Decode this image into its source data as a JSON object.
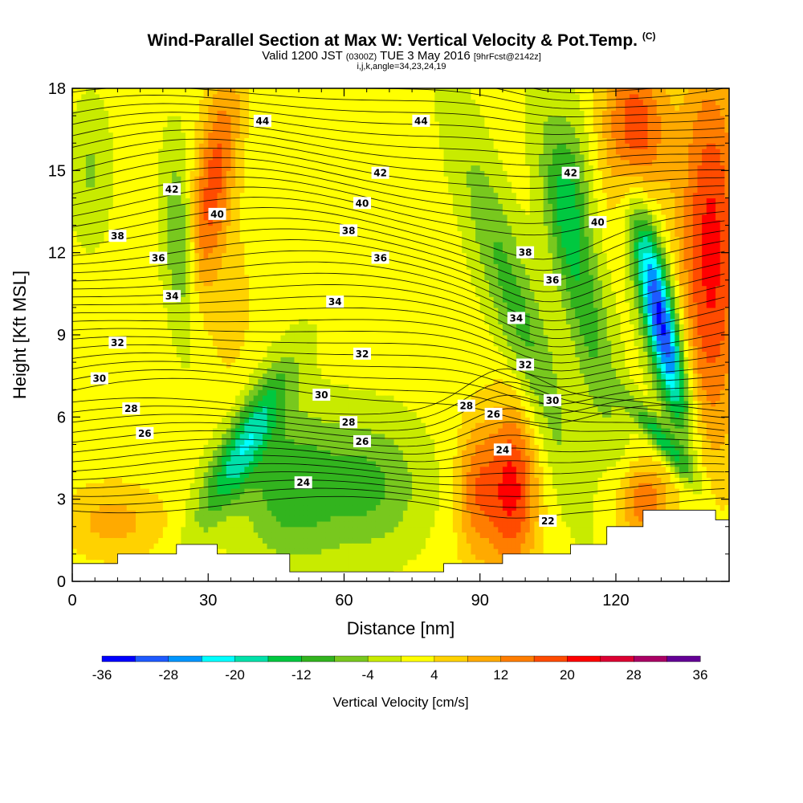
{
  "header": {
    "title": "Wind-Parallel Section at Max W: Vertical Velocity & Pot.Temp.",
    "copyright": "(C)",
    "valid_prefix": "Valid 1200 JST",
    "utc": "(0300Z)",
    "date": "TUE 3 May 2016",
    "forecast": "[9hrFcst@2142z]",
    "indices": "i,j,k,angle=34,23,24,19"
  },
  "chart_data": {
    "type": "heatmap",
    "xlabel": "Distance [nm]",
    "ylabel": "Height [Kft MSL]",
    "xlim": [
      0,
      145
    ],
    "ylim": [
      0,
      18
    ],
    "xticks": [
      0,
      30,
      60,
      90,
      120
    ],
    "yticks": [
      0,
      3,
      6,
      9,
      12,
      15,
      18
    ],
    "colorbar": {
      "label": "Vertical Velocity [cm/s]",
      "levels": [
        -36,
        -32,
        -28,
        -24,
        -20,
        -16,
        -12,
        -8,
        -4,
        0,
        4,
        8,
        12,
        16,
        20,
        24,
        28,
        32,
        36
      ],
      "tick_labels": [
        "-36",
        "-28",
        "-20",
        "-12",
        "-4",
        "4",
        "12",
        "20",
        "28",
        "36"
      ],
      "colors": [
        "#0000ff",
        "#1e5aff",
        "#0096ff",
        "#00ffff",
        "#00e1aa",
        "#00c840",
        "#32b41e",
        "#78c81e",
        "#c8eb00",
        "#ffff00",
        "#ffd200",
        "#ffaa00",
        "#ff7d00",
        "#ff4b00",
        "#ff0000",
        "#dc0032",
        "#aa0064",
        "#640096"
      ]
    },
    "terrain_height_kft": [
      {
        "x": 0,
        "h": 0.65
      },
      {
        "x": 10,
        "h": 1.0
      },
      {
        "x": 23,
        "h": 1.35
      },
      {
        "x": 32,
        "h": 1.0
      },
      {
        "x": 48,
        "h": 0.35
      },
      {
        "x": 82,
        "h": 0.65
      },
      {
        "x": 95,
        "h": 1.0
      },
      {
        "x": 110,
        "h": 1.35
      },
      {
        "x": 118,
        "h": 2.0
      },
      {
        "x": 126,
        "h": 2.6
      },
      {
        "x": 142,
        "h": 2.25
      }
    ],
    "theta_contour_labels": [
      "22",
      "24",
      "26",
      "28",
      "30",
      "32",
      "34",
      "36",
      "38",
      "40",
      "42",
      "44"
    ],
    "theta_label_positions": [
      {
        "t": "44",
        "x": 42,
        "y": 16.8
      },
      {
        "t": "44",
        "x": 77,
        "y": 16.8
      },
      {
        "t": "42",
        "x": 22,
        "y": 14.3
      },
      {
        "t": "42",
        "x": 68,
        "y": 14.9
      },
      {
        "t": "42",
        "x": 110,
        "y": 14.9
      },
      {
        "t": "40",
        "x": 32,
        "y": 13.4
      },
      {
        "t": "40",
        "x": 64,
        "y": 13.8
      },
      {
        "t": "40",
        "x": 116,
        "y": 13.1
      },
      {
        "t": "38",
        "x": 10,
        "y": 12.6
      },
      {
        "t": "38",
        "x": 61,
        "y": 12.8
      },
      {
        "t": "38",
        "x": 100,
        "y": 12.0
      },
      {
        "t": "36",
        "x": 19,
        "y": 11.8
      },
      {
        "t": "36",
        "x": 68,
        "y": 11.8
      },
      {
        "t": "36",
        "x": 106,
        "y": 11.0
      },
      {
        "t": "34",
        "x": 22,
        "y": 10.4
      },
      {
        "t": "34",
        "x": 58,
        "y": 10.2
      },
      {
        "t": "34",
        "x": 98,
        "y": 9.6
      },
      {
        "t": "32",
        "x": 10,
        "y": 8.7
      },
      {
        "t": "32",
        "x": 64,
        "y": 8.3
      },
      {
        "t": "32",
        "x": 100,
        "y": 7.9
      },
      {
        "t": "30",
        "x": 6,
        "y": 7.4
      },
      {
        "t": "30",
        "x": 55,
        "y": 6.8
      },
      {
        "t": "30",
        "x": 106,
        "y": 6.6
      },
      {
        "t": "28",
        "x": 13,
        "y": 6.3
      },
      {
        "t": "28",
        "x": 61,
        "y": 5.8
      },
      {
        "t": "28",
        "x": 87,
        "y": 6.4
      },
      {
        "t": "26",
        "x": 16,
        "y": 5.4
      },
      {
        "t": "26",
        "x": 64,
        "y": 5.1
      },
      {
        "t": "26",
        "x": 93,
        "y": 6.1
      },
      {
        "t": "24",
        "x": 51,
        "y": 3.6
      },
      {
        "t": "24",
        "x": 95,
        "y": 4.8
      },
      {
        "t": "22",
        "x": 105,
        "y": 2.2
      }
    ]
  }
}
